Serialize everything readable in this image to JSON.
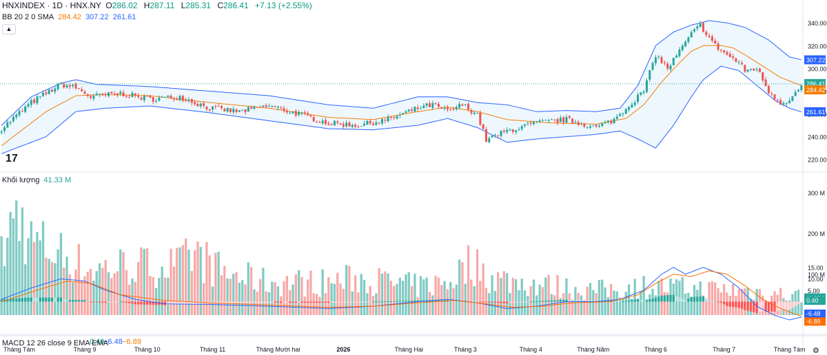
{
  "header": {
    "symbol": "HNXINDEX · 1D · HNX.NY",
    "open_label": "O",
    "open": "286.02",
    "high_label": "H",
    "high": "287.11",
    "low_label": "L",
    "low": "285.31",
    "close_label": "C",
    "close": "286.41",
    "change": "+7.13 (+2.55%)"
  },
  "indicators": {
    "bb_label": "BB 20 2 0 SMA",
    "bb_mid": "284.42",
    "bb_upper": "307.22",
    "bb_lower": "261.61",
    "volume_label": "Khối lượng",
    "volume_value": "41.33 M",
    "macd_label": "MACD 12 26 close 9 EMA EMA",
    "macd_hist": "0.40",
    "macd_line": "−6.48",
    "macd_signal": "−6.89"
  },
  "icons": {
    "collapse": "chevron-up-icon",
    "logo": "tradingview-logo-icon",
    "reset": "settings-icon"
  },
  "colors": {
    "up": "#26a69a",
    "down": "#ef5350",
    "band": "#2962ff",
    "mid": "#f57c00"
  },
  "chart_data": {
    "type": "candlestick",
    "price_axis": {
      "ticks": [
        "340.00",
        "320.00",
        "300.00",
        "280.00",
        "260.00",
        "240.00",
        "220.00"
      ],
      "ylim": [
        215,
        348
      ]
    },
    "price_labels": {
      "upper": "307.22",
      "close": "286.41",
      "mid": "284.42",
      "lower": "261.61"
    },
    "volume_axis": {
      "ticks": [
        "300 M",
        "200 M",
        "100 M"
      ],
      "ylim": [
        0,
        330
      ]
    },
    "volume_label": "41.33 M",
    "macd_axis": {
      "ticks": [
        "15.00",
        "10.00",
        "5.00",
        "-5.00"
      ],
      "ylim": [
        -9.5,
        17
      ]
    },
    "macd_labels": {
      "hist": "0.40",
      "line": "-6.48",
      "signal": "-6.89"
    },
    "x_labels": [
      "Tháng Tám",
      "Tháng 9",
      "Tháng 10",
      "Tháng 11",
      "Tháng Mười hai",
      "2026",
      "Tháng Hai",
      "Tháng 3",
      "Tháng 4",
      "Tháng Năm",
      "Tháng 6",
      "Tháng 7",
      "Tháng Tám"
    ],
    "x_label_bars": [
      6,
      28,
      49,
      71,
      93,
      115,
      137,
      156,
      178,
      199,
      220,
      243,
      265
    ],
    "bar_count": 270,
    "close_anchors": [
      [
        0,
        247
      ],
      [
        10,
        270
      ],
      [
        20,
        286
      ],
      [
        25,
        283
      ],
      [
        30,
        275
      ],
      [
        40,
        278
      ],
      [
        50,
        273
      ],
      [
        60,
        275
      ],
      [
        70,
        265
      ],
      [
        80,
        262
      ],
      [
        90,
        267
      ],
      [
        100,
        260
      ],
      [
        110,
        252
      ],
      [
        120,
        250
      ],
      [
        130,
        255
      ],
      [
        140,
        265
      ],
      [
        145,
        268
      ],
      [
        150,
        262
      ],
      [
        155,
        268
      ],
      [
        160,
        260
      ],
      [
        163,
        237
      ],
      [
        170,
        245
      ],
      [
        180,
        252
      ],
      [
        190,
        255
      ],
      [
        200,
        248
      ],
      [
        206,
        255
      ],
      [
        210,
        265
      ],
      [
        216,
        280
      ],
      [
        220,
        312
      ],
      [
        224,
        300
      ],
      [
        228,
        315
      ],
      [
        232,
        330
      ],
      [
        235,
        338
      ],
      [
        240,
        320
      ],
      [
        245,
        310
      ],
      [
        248,
        305
      ],
      [
        250,
        298
      ],
      [
        254,
        300
      ],
      [
        258,
        280
      ],
      [
        262,
        270
      ],
      [
        265,
        272
      ],
      [
        270,
        287
      ]
    ],
    "bb_mid_anchors": [
      [
        0,
        232
      ],
      [
        15,
        262
      ],
      [
        25,
        276
      ],
      [
        35,
        277
      ],
      [
        50,
        276
      ],
      [
        70,
        270
      ],
      [
        90,
        265
      ],
      [
        110,
        257
      ],
      [
        125,
        255
      ],
      [
        140,
        262
      ],
      [
        150,
        266
      ],
      [
        160,
        262
      ],
      [
        170,
        255
      ],
      [
        185,
        252
      ],
      [
        200,
        251
      ],
      [
        210,
        256
      ],
      [
        216,
        268
      ],
      [
        222,
        288
      ],
      [
        228,
        305
      ],
      [
        232,
        315
      ],
      [
        236,
        320
      ],
      [
        242,
        320
      ],
      [
        246,
        318
      ],
      [
        250,
        312
      ],
      [
        256,
        302
      ],
      [
        262,
        292
      ],
      [
        270,
        284
      ]
    ],
    "bb_upper_anchors": [
      [
        0,
        250
      ],
      [
        10,
        275
      ],
      [
        20,
        287
      ],
      [
        25,
        290
      ],
      [
        32,
        286
      ],
      [
        50,
        284
      ],
      [
        70,
        280
      ],
      [
        90,
        276
      ],
      [
        110,
        268
      ],
      [
        125,
        265
      ],
      [
        140,
        275
      ],
      [
        150,
        275
      ],
      [
        160,
        270
      ],
      [
        170,
        268
      ],
      [
        180,
        262
      ],
      [
        190,
        263
      ],
      [
        200,
        262
      ],
      [
        208,
        265
      ],
      [
        214,
        285
      ],
      [
        220,
        320
      ],
      [
        226,
        332
      ],
      [
        232,
        338
      ],
      [
        238,
        342
      ],
      [
        244,
        340
      ],
      [
        250,
        336
      ],
      [
        258,
        325
      ],
      [
        265,
        310
      ],
      [
        270,
        307
      ]
    ],
    "bb_lower_anchors": [
      [
        0,
        225
      ],
      [
        15,
        240
      ],
      [
        25,
        262
      ],
      [
        35,
        265
      ],
      [
        50,
        267
      ],
      [
        70,
        261
      ],
      [
        90,
        254
      ],
      [
        110,
        247
      ],
      [
        125,
        246
      ],
      [
        140,
        250
      ],
      [
        150,
        256
      ],
      [
        160,
        248
      ],
      [
        170,
        235
      ],
      [
        180,
        238
      ],
      [
        190,
        240
      ],
      [
        200,
        242
      ],
      [
        208,
        245
      ],
      [
        214,
        238
      ],
      [
        220,
        230
      ],
      [
        226,
        250
      ],
      [
        232,
        275
      ],
      [
        236,
        290
      ],
      [
        242,
        302
      ],
      [
        248,
        298
      ],
      [
        254,
        285
      ],
      [
        260,
        272
      ],
      [
        265,
        265
      ],
      [
        270,
        261
      ]
    ],
    "volume_anchors": [
      [
        0,
        140
      ],
      [
        5,
        250
      ],
      [
        10,
        180
      ],
      [
        20,
        150
      ],
      [
        30,
        110
      ],
      [
        40,
        120
      ],
      [
        60,
        120
      ],
      [
        65,
        150
      ],
      [
        75,
        100
      ],
      [
        90,
        80
      ],
      [
        110,
        80
      ],
      [
        120,
        90
      ],
      [
        130,
        80
      ],
      [
        140,
        70
      ],
      [
        150,
        80
      ],
      [
        158,
        130
      ],
      [
        165,
        90
      ],
      [
        180,
        75
      ],
      [
        200,
        60
      ],
      [
        216,
        70
      ],
      [
        230,
        65
      ],
      [
        250,
        60
      ],
      [
        270,
        45
      ]
    ],
    "macd_anchors": [
      [
        0,
        1
      ],
      [
        10,
        6
      ],
      [
        20,
        10
      ],
      [
        28,
        9
      ],
      [
        35,
        5
      ],
      [
        45,
        1
      ],
      [
        55,
        -1
      ],
      [
        70,
        -1.2
      ],
      [
        90,
        -2
      ],
      [
        110,
        -3
      ],
      [
        125,
        -2
      ],
      [
        140,
        0
      ],
      [
        150,
        1
      ],
      [
        160,
        -0.5
      ],
      [
        170,
        -3
      ],
      [
        180,
        -2
      ],
      [
        190,
        0
      ],
      [
        200,
        0
      ],
      [
        208,
        1
      ],
      [
        216,
        5
      ],
      [
        222,
        12
      ],
      [
        226,
        15
      ],
      [
        230,
        12
      ],
      [
        236,
        15
      ],
      [
        242,
        12
      ],
      [
        248,
        6
      ],
      [
        254,
        -2
      ],
      [
        260,
        -6
      ],
      [
        265,
        -8
      ],
      [
        270,
        -6.48
      ]
    ],
    "signal_anchors": [
      [
        0,
        0
      ],
      [
        12,
        5
      ],
      [
        22,
        9
      ],
      [
        30,
        8
      ],
      [
        40,
        3
      ],
      [
        55,
        0.5
      ],
      [
        70,
        -0.5
      ],
      [
        90,
        -1.5
      ],
      [
        110,
        -2.5
      ],
      [
        125,
        -2
      ],
      [
        140,
        -0.5
      ],
      [
        152,
        0.5
      ],
      [
        160,
        -0.5
      ],
      [
        172,
        -2.5
      ],
      [
        182,
        -2
      ],
      [
        192,
        -0.5
      ],
      [
        205,
        0
      ],
      [
        214,
        3
      ],
      [
        220,
        8
      ],
      [
        226,
        12
      ],
      [
        232,
        11
      ],
      [
        238,
        13.5
      ],
      [
        244,
        12
      ],
      [
        250,
        7
      ],
      [
        256,
        1
      ],
      [
        262,
        -3
      ],
      [
        266,
        -5
      ],
      [
        270,
        -6.89
      ]
    ]
  }
}
